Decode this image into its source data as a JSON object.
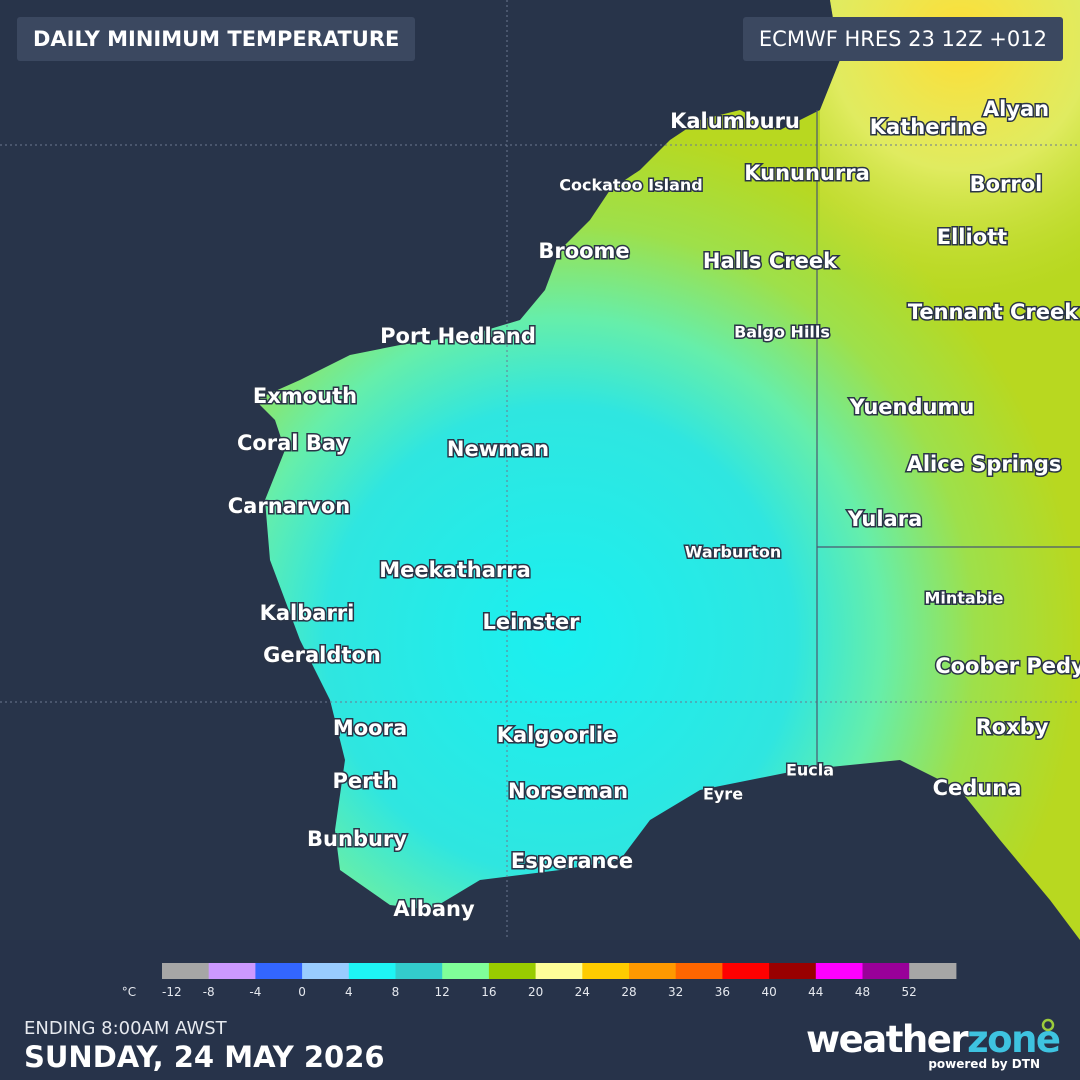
{
  "header": {
    "title": "DAILY MINIMUM TEMPERATURE",
    "model": "ECMWF HRES 23 12Z +012"
  },
  "places": [
    "Kalumburu",
    "Katherine",
    "Alyan",
    "Cockatoo Island",
    "Kununurra",
    "Borrol",
    "Broome",
    "Halls Creek",
    "Elliott",
    "Tennant Creek",
    "Port Hedland",
    "Balgo Hills",
    "Exmouth",
    "Yuendumu",
    "Coral Bay",
    "Newman",
    "Alice Springs",
    "Carnarvon",
    "Yulara",
    "Warburton",
    "Meekatharra",
    "Mintabie",
    "Kalbarri",
    "Leinster",
    "Geraldton",
    "Coober Pedy",
    "Moora",
    "Kalgoorlie",
    "Roxby",
    "Eucla",
    "Perth",
    "Ceduna",
    "Norseman",
    "Eyre",
    "Bunbury",
    "Esperance",
    "Albany"
  ],
  "legend": {
    "unit": "°C",
    "ticks": [
      -12,
      -8,
      -4,
      0,
      4,
      8,
      12,
      16,
      20,
      24,
      28,
      32,
      36,
      40,
      44,
      48,
      52
    ],
    "colors": [
      "#a6a6a6",
      "#cc99ff",
      "#3366ff",
      "#99ccff",
      "#1ef4f4",
      "#33cccc",
      "#80ff99",
      "#99cc00",
      "#ffff99",
      "#ffcc00",
      "#ff9900",
      "#ff6600",
      "#ff0000",
      "#990000",
      "#ff00ff",
      "#990099",
      "#a6a6a6"
    ]
  },
  "footer": {
    "ending": "ENDING 8:00AM AWST",
    "date": "SUNDAY, 24 MAY 2026",
    "brand_a": "weather",
    "brand_b": "zone",
    "powered": "powered by DTN"
  }
}
